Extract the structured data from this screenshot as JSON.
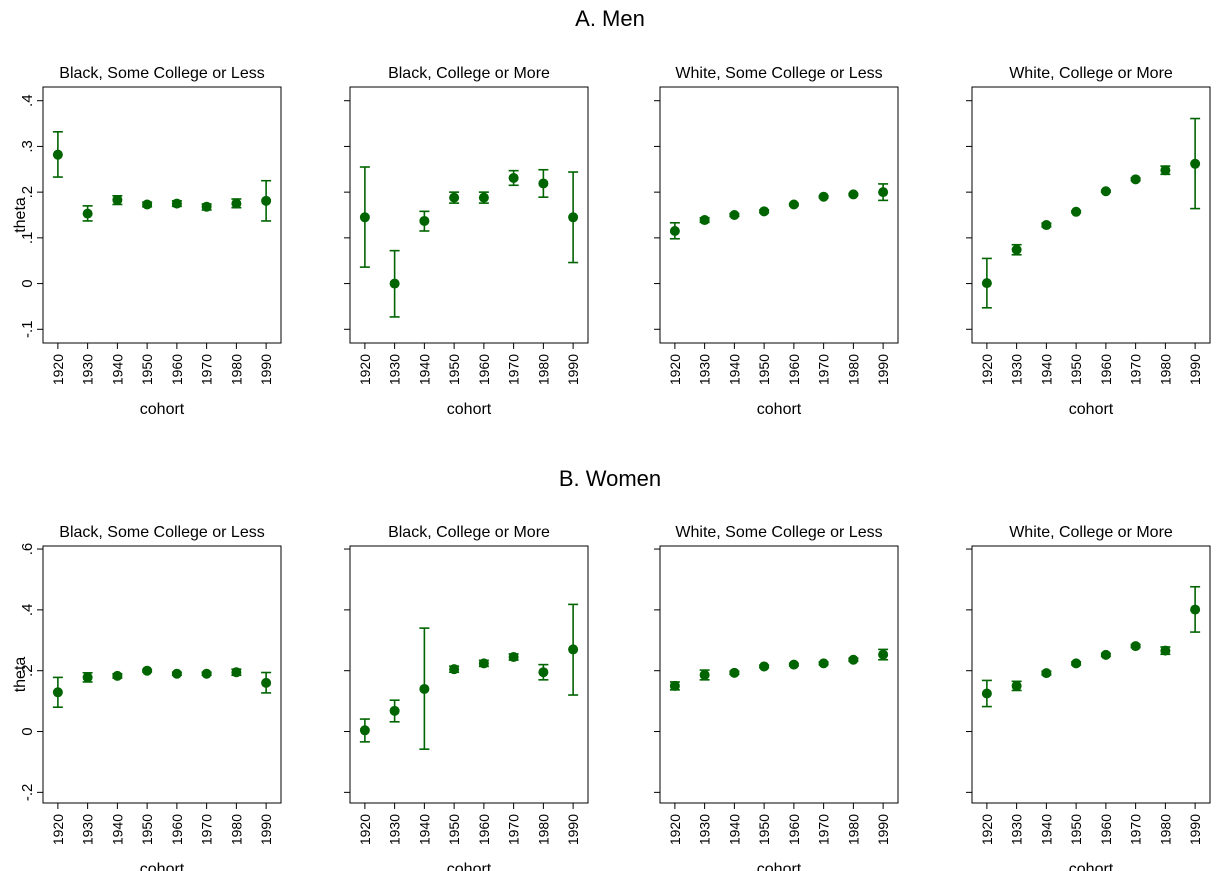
{
  "panels": [
    {
      "label": "A. Men"
    },
    {
      "label": "B. Women"
    }
  ],
  "colors": {
    "marker": "#006400",
    "axis": "#000000"
  },
  "chart_data": [
    {
      "type": "scatter",
      "panel": "A. Men",
      "title": "Black, Some College or Less",
      "xlabel": "cohort",
      "ylabel": "theta",
      "ylim": [
        -0.13,
        0.43
      ],
      "yticks": [
        "-.1",
        "0",
        ".1",
        ".2",
        ".3",
        ".4"
      ],
      "ytick_values": [
        -0.1,
        0,
        0.1,
        0.2,
        0.3,
        0.4
      ],
      "x": [
        1920,
        1930,
        1940,
        1950,
        1960,
        1970,
        1980,
        1990
      ],
      "y": [
        0.282,
        0.153,
        0.183,
        0.173,
        0.175,
        0.168,
        0.175,
        0.181
      ],
      "lower": [
        0.233,
        0.137,
        0.173,
        0.168,
        0.169,
        0.161,
        0.166,
        0.137
      ],
      "upper": [
        0.332,
        0.17,
        0.192,
        0.178,
        0.181,
        0.174,
        0.185,
        0.225
      ]
    },
    {
      "type": "scatter",
      "panel": "A. Men",
      "title": "Black, College or More",
      "xlabel": "cohort",
      "ylabel": "",
      "ylim": [
        -0.13,
        0.43
      ],
      "yticks": [],
      "ytick_values": [
        -0.1,
        0,
        0.1,
        0.2,
        0.3,
        0.4
      ],
      "x": [
        1920,
        1930,
        1940,
        1950,
        1960,
        1970,
        1980,
        1990
      ],
      "y": [
        0.145,
        0.0,
        0.137,
        0.188,
        0.188,
        0.231,
        0.219,
        0.145
      ],
      "lower": [
        0.036,
        -0.073,
        0.115,
        0.176,
        0.176,
        0.215,
        0.189,
        0.046
      ],
      "upper": [
        0.255,
        0.072,
        0.158,
        0.2,
        0.2,
        0.247,
        0.249,
        0.244
      ]
    },
    {
      "type": "scatter",
      "panel": "A. Men",
      "title": "White, Some College or Less",
      "xlabel": "cohort",
      "ylabel": "",
      "ylim": [
        -0.13,
        0.43
      ],
      "yticks": [],
      "ytick_values": [
        -0.1,
        0,
        0.1,
        0.2,
        0.3,
        0.4
      ],
      "x": [
        1920,
        1930,
        1940,
        1950,
        1960,
        1970,
        1980,
        1990
      ],
      "y": [
        0.115,
        0.139,
        0.15,
        0.158,
        0.173,
        0.19,
        0.195,
        0.2
      ],
      "lower": [
        0.098,
        0.134,
        0.147,
        0.155,
        0.171,
        0.188,
        0.193,
        0.182
      ],
      "upper": [
        0.133,
        0.144,
        0.153,
        0.161,
        0.175,
        0.192,
        0.197,
        0.218
      ]
    },
    {
      "type": "scatter",
      "panel": "A. Men",
      "title": "White, College or More",
      "xlabel": "cohort",
      "ylabel": "",
      "ylim": [
        -0.13,
        0.43
      ],
      "yticks": [],
      "ytick_values": [
        -0.1,
        0,
        0.1,
        0.2,
        0.3,
        0.4
      ],
      "x": [
        1920,
        1930,
        1940,
        1950,
        1960,
        1970,
        1980,
        1990
      ],
      "y": [
        0.001,
        0.074,
        0.128,
        0.157,
        0.202,
        0.228,
        0.248,
        0.262
      ],
      "lower": [
        -0.053,
        0.063,
        0.124,
        0.155,
        0.2,
        0.225,
        0.239,
        0.164
      ],
      "upper": [
        0.055,
        0.085,
        0.132,
        0.159,
        0.204,
        0.231,
        0.257,
        0.361
      ]
    },
    {
      "type": "scatter",
      "panel": "B. Women",
      "title": "Black, Some College or Less",
      "xlabel": "cohort",
      "ylabel": "theta",
      "ylim": [
        -0.235,
        0.61
      ],
      "yticks": [
        "-.2",
        "0",
        ".2",
        ".4",
        ".6"
      ],
      "ytick_values": [
        -0.2,
        0,
        0.2,
        0.4,
        0.6
      ],
      "x": [
        1920,
        1930,
        1940,
        1950,
        1960,
        1970,
        1980,
        1990
      ],
      "y": [
        0.129,
        0.178,
        0.183,
        0.2,
        0.19,
        0.19,
        0.195,
        0.16
      ],
      "lower": [
        0.08,
        0.163,
        0.176,
        0.196,
        0.185,
        0.185,
        0.185,
        0.127
      ],
      "upper": [
        0.178,
        0.193,
        0.19,
        0.204,
        0.195,
        0.195,
        0.205,
        0.194
      ]
    },
    {
      "type": "scatter",
      "panel": "B. Women",
      "title": "Black, College or More",
      "xlabel": "cohort",
      "ylabel": "",
      "ylim": [
        -0.235,
        0.61
      ],
      "yticks": [],
      "ytick_values": [
        -0.2,
        0,
        0.2,
        0.4,
        0.6
      ],
      "x": [
        1920,
        1930,
        1940,
        1950,
        1960,
        1970,
        1980,
        1990
      ],
      "y": [
        0.004,
        0.068,
        0.14,
        0.205,
        0.224,
        0.245,
        0.195,
        0.27
      ],
      "lower": [
        -0.034,
        0.032,
        -0.058,
        0.195,
        0.214,
        0.235,
        0.17,
        0.12
      ],
      "upper": [
        0.041,
        0.103,
        0.34,
        0.215,
        0.234,
        0.255,
        0.22,
        0.418
      ]
    },
    {
      "type": "scatter",
      "panel": "B. Women",
      "title": "White, Some College or Less",
      "xlabel": "cohort",
      "ylabel": "",
      "ylim": [
        -0.235,
        0.61
      ],
      "yticks": [],
      "ytick_values": [
        -0.2,
        0,
        0.2,
        0.4,
        0.6
      ],
      "x": [
        1920,
        1930,
        1940,
        1950,
        1960,
        1970,
        1980,
        1990
      ],
      "y": [
        0.15,
        0.186,
        0.193,
        0.214,
        0.22,
        0.224,
        0.236,
        0.253
      ],
      "lower": [
        0.137,
        0.17,
        0.188,
        0.21,
        0.216,
        0.22,
        0.231,
        0.236
      ],
      "upper": [
        0.163,
        0.202,
        0.198,
        0.218,
        0.224,
        0.228,
        0.241,
        0.27
      ]
    },
    {
      "type": "scatter",
      "panel": "B. Women",
      "title": "White, College or More",
      "xlabel": "cohort",
      "ylabel": "",
      "ylim": [
        -0.235,
        0.61
      ],
      "yticks": [],
      "ytick_values": [
        -0.2,
        0,
        0.2,
        0.4,
        0.6
      ],
      "x": [
        1920,
        1930,
        1940,
        1950,
        1960,
        1970,
        1980,
        1990
      ],
      "y": [
        0.125,
        0.15,
        0.192,
        0.224,
        0.252,
        0.281,
        0.266,
        0.401
      ],
      "lower": [
        0.082,
        0.135,
        0.186,
        0.219,
        0.247,
        0.276,
        0.254,
        0.327
      ],
      "upper": [
        0.168,
        0.165,
        0.198,
        0.229,
        0.257,
        0.286,
        0.278,
        0.476
      ]
    }
  ]
}
